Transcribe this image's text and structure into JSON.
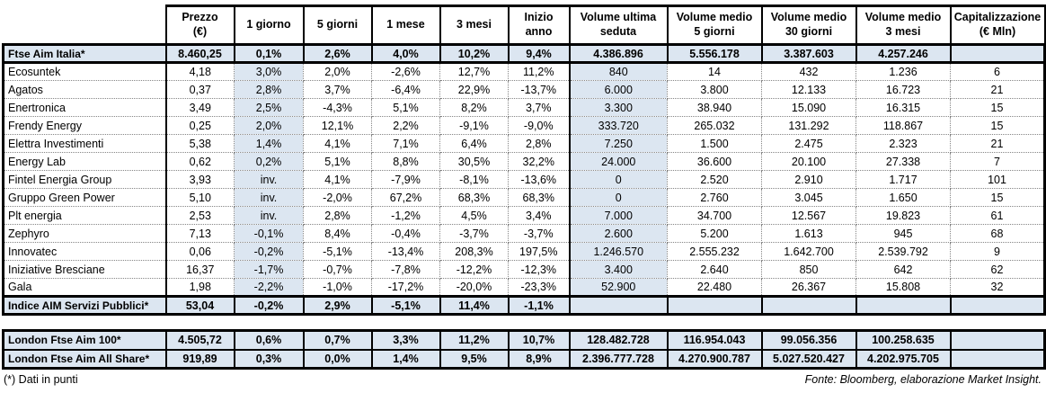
{
  "colors": {
    "highlight_fill": "#dce6f1",
    "border": "#000000",
    "text": "#000000"
  },
  "chart_data": {
    "type": "table",
    "columns": [
      {
        "line1": "Prezzo",
        "line2": "(€)"
      },
      {
        "line1": "1 giorno",
        "line2": ""
      },
      {
        "line1": "5 giorni",
        "line2": ""
      },
      {
        "line1": "1 mese",
        "line2": ""
      },
      {
        "line1": "3 mesi",
        "line2": ""
      },
      {
        "line1": "Inizio anno",
        "line2": ""
      },
      {
        "line1": "Volume ultima",
        "line2": "seduta"
      },
      {
        "line1": "Volume medio",
        "line2": "5 giorni"
      },
      {
        "line1": "Volume medio",
        "line2": "30 giorni"
      },
      {
        "line1": "Volume medio",
        "line2": "3 mesi"
      },
      {
        "line1": "Capitalizzazione",
        "line2": "(€ Mln)"
      }
    ],
    "rows": [
      {
        "name": "Ftse Aim Italia*",
        "type": "index",
        "cells": [
          "8.460,25",
          "0,1%",
          "2,6%",
          "4,0%",
          "10,2%",
          "9,4%",
          "4.386.896",
          "5.556.178",
          "3.387.603",
          "4.257.246",
          ""
        ]
      },
      {
        "name": "Ecosuntek",
        "type": "stock",
        "cells": [
          "4,18",
          "3,0%",
          "2,0%",
          "-2,6%",
          "12,7%",
          "11,2%",
          "840",
          "14",
          "432",
          "1.236",
          "6"
        ]
      },
      {
        "name": "Agatos",
        "type": "stock",
        "cells": [
          "0,37",
          "2,8%",
          "3,7%",
          "-6,4%",
          "22,9%",
          "-13,7%",
          "6.000",
          "3.800",
          "12.133",
          "16.723",
          "21"
        ]
      },
      {
        "name": "Enertronica",
        "type": "stock",
        "cells": [
          "3,49",
          "2,5%",
          "-4,3%",
          "5,1%",
          "8,2%",
          "3,7%",
          "3.300",
          "38.940",
          "15.090",
          "16.315",
          "15"
        ]
      },
      {
        "name": "Frendy Energy",
        "type": "stock",
        "cells": [
          "0,25",
          "2,0%",
          "12,1%",
          "2,2%",
          "-9,1%",
          "-9,0%",
          "333.720",
          "265.032",
          "131.292",
          "118.867",
          "15"
        ]
      },
      {
        "name": "Elettra Investimenti",
        "type": "stock",
        "cells": [
          "5,38",
          "1,4%",
          "4,1%",
          "7,1%",
          "6,4%",
          "2,8%",
          "7.250",
          "1.500",
          "2.475",
          "2.323",
          "21"
        ]
      },
      {
        "name": "Energy Lab",
        "type": "stock",
        "cells": [
          "0,62",
          "0,2%",
          "5,1%",
          "8,8%",
          "30,5%",
          "32,2%",
          "24.000",
          "36.600",
          "20.100",
          "27.338",
          "7"
        ]
      },
      {
        "name": "Fintel Energia Group",
        "type": "stock",
        "cells": [
          "3,93",
          "inv.",
          "4,1%",
          "-7,9%",
          "-8,1%",
          "-13,6%",
          "0",
          "2.520",
          "2.910",
          "1.717",
          "101"
        ]
      },
      {
        "name": "Gruppo Green Power",
        "type": "stock",
        "cells": [
          "5,10",
          "inv.",
          "-2,0%",
          "67,2%",
          "68,3%",
          "68,3%",
          "0",
          "2.760",
          "3.045",
          "1.650",
          "15"
        ]
      },
      {
        "name": "Plt energia",
        "type": "stock",
        "cells": [
          "2,53",
          "inv.",
          "2,8%",
          "-1,2%",
          "4,5%",
          "3,4%",
          "7.000",
          "34.700",
          "12.567",
          "19.823",
          "61"
        ]
      },
      {
        "name": "Zephyro",
        "type": "stock",
        "cells": [
          "7,13",
          "-0,1%",
          "8,4%",
          "-0,4%",
          "-3,7%",
          "-3,7%",
          "2.600",
          "5.200",
          "1.613",
          "945",
          "68"
        ]
      },
      {
        "name": "Innovatec",
        "type": "stock",
        "cells": [
          "0,06",
          "-0,2%",
          "-5,1%",
          "-13,4%",
          "208,3%",
          "197,5%",
          "1.246.570",
          "2.555.232",
          "1.642.700",
          "2.539.792",
          "9"
        ]
      },
      {
        "name": "Iniziative Bresciane",
        "type": "stock",
        "cells": [
          "16,37",
          "-1,7%",
          "-0,7%",
          "-7,8%",
          "-12,2%",
          "-12,3%",
          "3.400",
          "2.640",
          "850",
          "642",
          "62"
        ]
      },
      {
        "name": "Gala",
        "type": "stock",
        "cells": [
          "1,98",
          "-2,2%",
          "-1,0%",
          "-17,2%",
          "-20,0%",
          "-23,3%",
          "52.900",
          "22.480",
          "26.367",
          "15.808",
          "32"
        ]
      },
      {
        "name": "Indice AIM Servizi Pubblici*",
        "type": "index",
        "cells": [
          "53,04",
          "-0,2%",
          "2,9%",
          "-5,1%",
          "11,4%",
          "-1,1%",
          "",
          "",
          "",
          "",
          ""
        ]
      }
    ],
    "london_rows": [
      {
        "name": "London Ftse Aim 100*",
        "type": "index",
        "cells": [
          "4.505,72",
          "0,6%",
          "0,7%",
          "3,3%",
          "11,2%",
          "10,7%",
          "128.482.728",
          "116.954.043",
          "99.056.356",
          "100.258.635",
          ""
        ]
      },
      {
        "name": "London Ftse Aim All Share*",
        "type": "index",
        "cells": [
          "919,89",
          "0,3%",
          "0,0%",
          "1,4%",
          "9,5%",
          "8,9%",
          "2.396.777.728",
          "4.270.900.787",
          "5.027.520.427",
          "4.202.975.705",
          ""
        ]
      }
    ],
    "footnote": "(*) Dati in punti",
    "source": "Fonte: Bloomberg, elaborazione Market Insight."
  }
}
